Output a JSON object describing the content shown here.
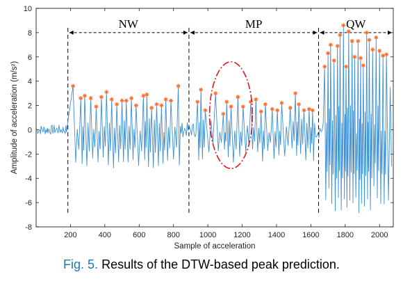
{
  "caption": {
    "figure_number": "Fig. 5.",
    "text": "Results of the DTW-based peak prediction."
  },
  "chart_data": {
    "type": "line",
    "xlabel": "Sample of acceleration",
    "ylabel": "Amplitude of acceleration (m/s²)",
    "xlim": [
      0,
      2080
    ],
    "ylim": [
      -8,
      10
    ],
    "xticks": [
      200,
      400,
      600,
      800,
      1000,
      1200,
      1400,
      1600,
      1800,
      2000
    ],
    "yticks": [
      -8,
      -6,
      -4,
      -2,
      0,
      2,
      4,
      6,
      8,
      10
    ],
    "colors": {
      "signal": "#3b8fd4",
      "peak": "#ff6a2a",
      "region": "#000000",
      "ellipse": "#e8141c"
    },
    "regions": [
      {
        "label": "NW",
        "start": 185,
        "end": 890
      },
      {
        "label": "MP",
        "start": 890,
        "end": 1645
      },
      {
        "label": "QW",
        "start": 1645,
        "end": 2080
      }
    ],
    "highlight_ellipse": {
      "cx": 1135,
      "cy": 1.2,
      "rx": 125,
      "ry": 4.4
    },
    "series": [
      {
        "peaks": [
          {
            "x": 215,
            "y": 3.6
          },
          {
            "x": 260,
            "y": 2.6
          },
          {
            "x": 283,
            "y": 2.8
          },
          {
            "x": 318,
            "y": 2.6
          },
          {
            "x": 350,
            "y": 1.9
          },
          {
            "x": 380,
            "y": 2.7
          },
          {
            "x": 410,
            "y": 3.1
          },
          {
            "x": 440,
            "y": 2.5
          },
          {
            "x": 470,
            "y": 2.1
          },
          {
            "x": 500,
            "y": 2.4
          },
          {
            "x": 525,
            "y": 2.4
          },
          {
            "x": 555,
            "y": 2.6
          },
          {
            "x": 582,
            "y": 2.0
          },
          {
            "x": 625,
            "y": 2.8
          },
          {
            "x": 645,
            "y": 2.9
          },
          {
            "x": 672,
            "y": 1.8
          },
          {
            "x": 702,
            "y": 2.1
          },
          {
            "x": 730,
            "y": 2.0
          },
          {
            "x": 755,
            "y": 2.5
          },
          {
            "x": 785,
            "y": 2.4
          },
          {
            "x": 828,
            "y": 3.6
          },
          {
            "x": 940,
            "y": 2.3
          },
          {
            "x": 960,
            "y": 3.3
          },
          {
            "x": 985,
            "y": 1.6
          },
          {
            "x": 1045,
            "y": 3.0
          },
          {
            "x": 1090,
            "y": 1.3
          },
          {
            "x": 1110,
            "y": 2.3
          },
          {
            "x": 1135,
            "y": 1.9
          },
          {
            "x": 1175,
            "y": 2.7
          },
          {
            "x": 1205,
            "y": 1.9
          },
          {
            "x": 1250,
            "y": 2.3
          },
          {
            "x": 1280,
            "y": 2.5
          },
          {
            "x": 1310,
            "y": 1.5
          },
          {
            "x": 1335,
            "y": 2.1
          },
          {
            "x": 1375,
            "y": 1.7
          },
          {
            "x": 1405,
            "y": 1.6
          },
          {
            "x": 1430,
            "y": 2.2
          },
          {
            "x": 1480,
            "y": 1.8
          },
          {
            "x": 1510,
            "y": 3.0
          },
          {
            "x": 1530,
            "y": 2.1
          },
          {
            "x": 1560,
            "y": 1.6
          },
          {
            "x": 1590,
            "y": 1.7
          },
          {
            "x": 1610,
            "y": 1.6
          },
          {
            "x": 1680,
            "y": 5.2
          },
          {
            "x": 1700,
            "y": 6.3
          },
          {
            "x": 1715,
            "y": 7.0
          },
          {
            "x": 1735,
            "y": 5.7
          },
          {
            "x": 1755,
            "y": 6.9
          },
          {
            "x": 1770,
            "y": 7.8
          },
          {
            "x": 1790,
            "y": 8.6
          },
          {
            "x": 1805,
            "y": 5.2
          },
          {
            "x": 1820,
            "y": 8.1
          },
          {
            "x": 1840,
            "y": 7.3
          },
          {
            "x": 1855,
            "y": 6.0
          },
          {
            "x": 1875,
            "y": 7.3
          },
          {
            "x": 1890,
            "y": 5.9
          },
          {
            "x": 1905,
            "y": 5.3
          },
          {
            "x": 1925,
            "y": 8.0
          },
          {
            "x": 1940,
            "y": 7.4
          },
          {
            "x": 1960,
            "y": 6.6
          },
          {
            "x": 1980,
            "y": 7.6
          },
          {
            "x": 2000,
            "y": 6.5
          },
          {
            "x": 2020,
            "y": 6.1
          },
          {
            "x": 2040,
            "y": 6.2
          }
        ]
      }
    ]
  }
}
